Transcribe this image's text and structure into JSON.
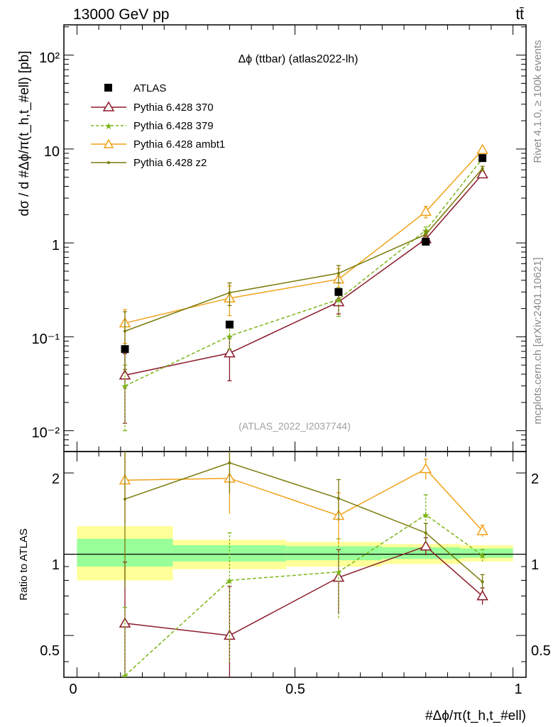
{
  "header": {
    "left": "13000 GeV pp",
    "right": "tt̄"
  },
  "side_labels": {
    "top": "Rivet 4.1.0, ≥ 100k events",
    "bottom": "mcplots.cern.ch [arXiv:2401.10621]"
  },
  "chart_data": {
    "type": "line",
    "title": "Δϕ (ttbar) (atlas2022-lh)",
    "watermark": "(ATLAS_2022_I2037744)",
    "ylabel": "dσ / d #Δϕ/π(t_h,t_#ell) [pb]",
    "ratio_ylabel": "Ratio to ATLAS",
    "xlabel": "#Δϕ/π(t_h,t_#ell)",
    "xlim": [
      -0.03,
      1.03
    ],
    "ylim": [
      0.006,
      210
    ],
    "ratio_ylim": [
      0.35,
      2.4
    ],
    "yscale": "log",
    "ratio_yscale": "log",
    "xticks": [
      "0",
      "0.5",
      "1"
    ],
    "yticks": [
      "10⁻²",
      "10⁻¹",
      "1",
      "10",
      "10²"
    ],
    "ratio_yticks": [
      "0.5",
      "1",
      "2"
    ],
    "bins": [
      [
        0,
        0.22
      ],
      [
        0.22,
        0.48
      ],
      [
        0.48,
        0.7
      ],
      [
        0.7,
        0.88
      ],
      [
        0.88,
        1.0
      ]
    ],
    "x": [
      0.11,
      0.35,
      0.6,
      0.8,
      0.93
    ],
    "data": {
      "name": "ATLAS",
      "values": [
        0.074,
        0.135,
        0.3,
        1.03,
        8.0
      ],
      "band_inner": [
        [
          0.9,
          1.14
        ],
        [
          0.94,
          1.08
        ],
        [
          0.95,
          1.07
        ],
        [
          0.96,
          1.06
        ],
        [
          0.97,
          1.05
        ]
      ],
      "band_outer": [
        [
          0.8,
          1.27
        ],
        [
          0.88,
          1.13
        ],
        [
          0.9,
          1.11
        ],
        [
          0.92,
          1.09
        ],
        [
          0.94,
          1.08
        ]
      ]
    },
    "series": [
      {
        "name": "Pythia 6.428 370",
        "color": "#8b1a2b",
        "marker": "triangle-open",
        "dashed": false,
        "values": [
          0.039,
          0.067,
          0.235,
          1.1,
          5.4
        ],
        "errors": [
          0.027,
          0.033,
          0.06,
          0.08,
          0.3
        ],
        "ratio": [
          0.555,
          0.5,
          0.82,
          1.07,
          0.7
        ],
        "ratio_errors": [
          0.38,
          0.26,
          0.22,
          0.08,
          0.05
        ]
      },
      {
        "name": "Pythia 6.428 379",
        "color": "#7cb518",
        "marker": "star",
        "dashed": true,
        "values": [
          0.03,
          0.102,
          0.25,
          1.36,
          7.9
        ],
        "errors": [
          0.02,
          0.028,
          0.085,
          0.12,
          0.4
        ],
        "ratio": [
          0.355,
          0.8,
          0.86,
          1.4,
          0.99
        ],
        "ratio_errors": [
          0.28,
          0.4,
          0.28,
          0.26,
          0.05
        ]
      },
      {
        "name": "Pythia 6.428 ambt1",
        "color": "#f0a21a",
        "marker": "triangle-open",
        "dashed": false,
        "values": [
          0.14,
          0.258,
          0.41,
          2.15,
          9.8
        ],
        "errors": [
          0.055,
          0.09,
          0.12,
          0.3,
          0.5
        ],
        "ratio": [
          1.88,
          1.91,
          1.39,
          2.07,
          1.22
        ],
        "ratio_errors": [
          0.6,
          0.5,
          0.3,
          0.18,
          0.06
        ]
      },
      {
        "name": "Pythia 6.428 z2",
        "color": "#7a7a0a",
        "marker": "dot",
        "dashed": false,
        "values": [
          0.115,
          0.295,
          0.475,
          1.23,
          6.2
        ],
        "errors": [
          0.07,
          0.08,
          0.1,
          0.1,
          0.35
        ],
        "ratio": [
          1.6,
          2.18,
          1.61,
          1.2,
          0.79
        ],
        "ratio_errors": [
          0.85,
          0.5,
          0.28,
          0.1,
          0.05
        ]
      }
    ],
    "legend": [
      "ATLAS",
      "Pythia 6.428 370",
      "Pythia 6.428 379",
      "Pythia 6.428 ambt1",
      "Pythia 6.428 z2"
    ],
    "legend_position": "top-left"
  }
}
